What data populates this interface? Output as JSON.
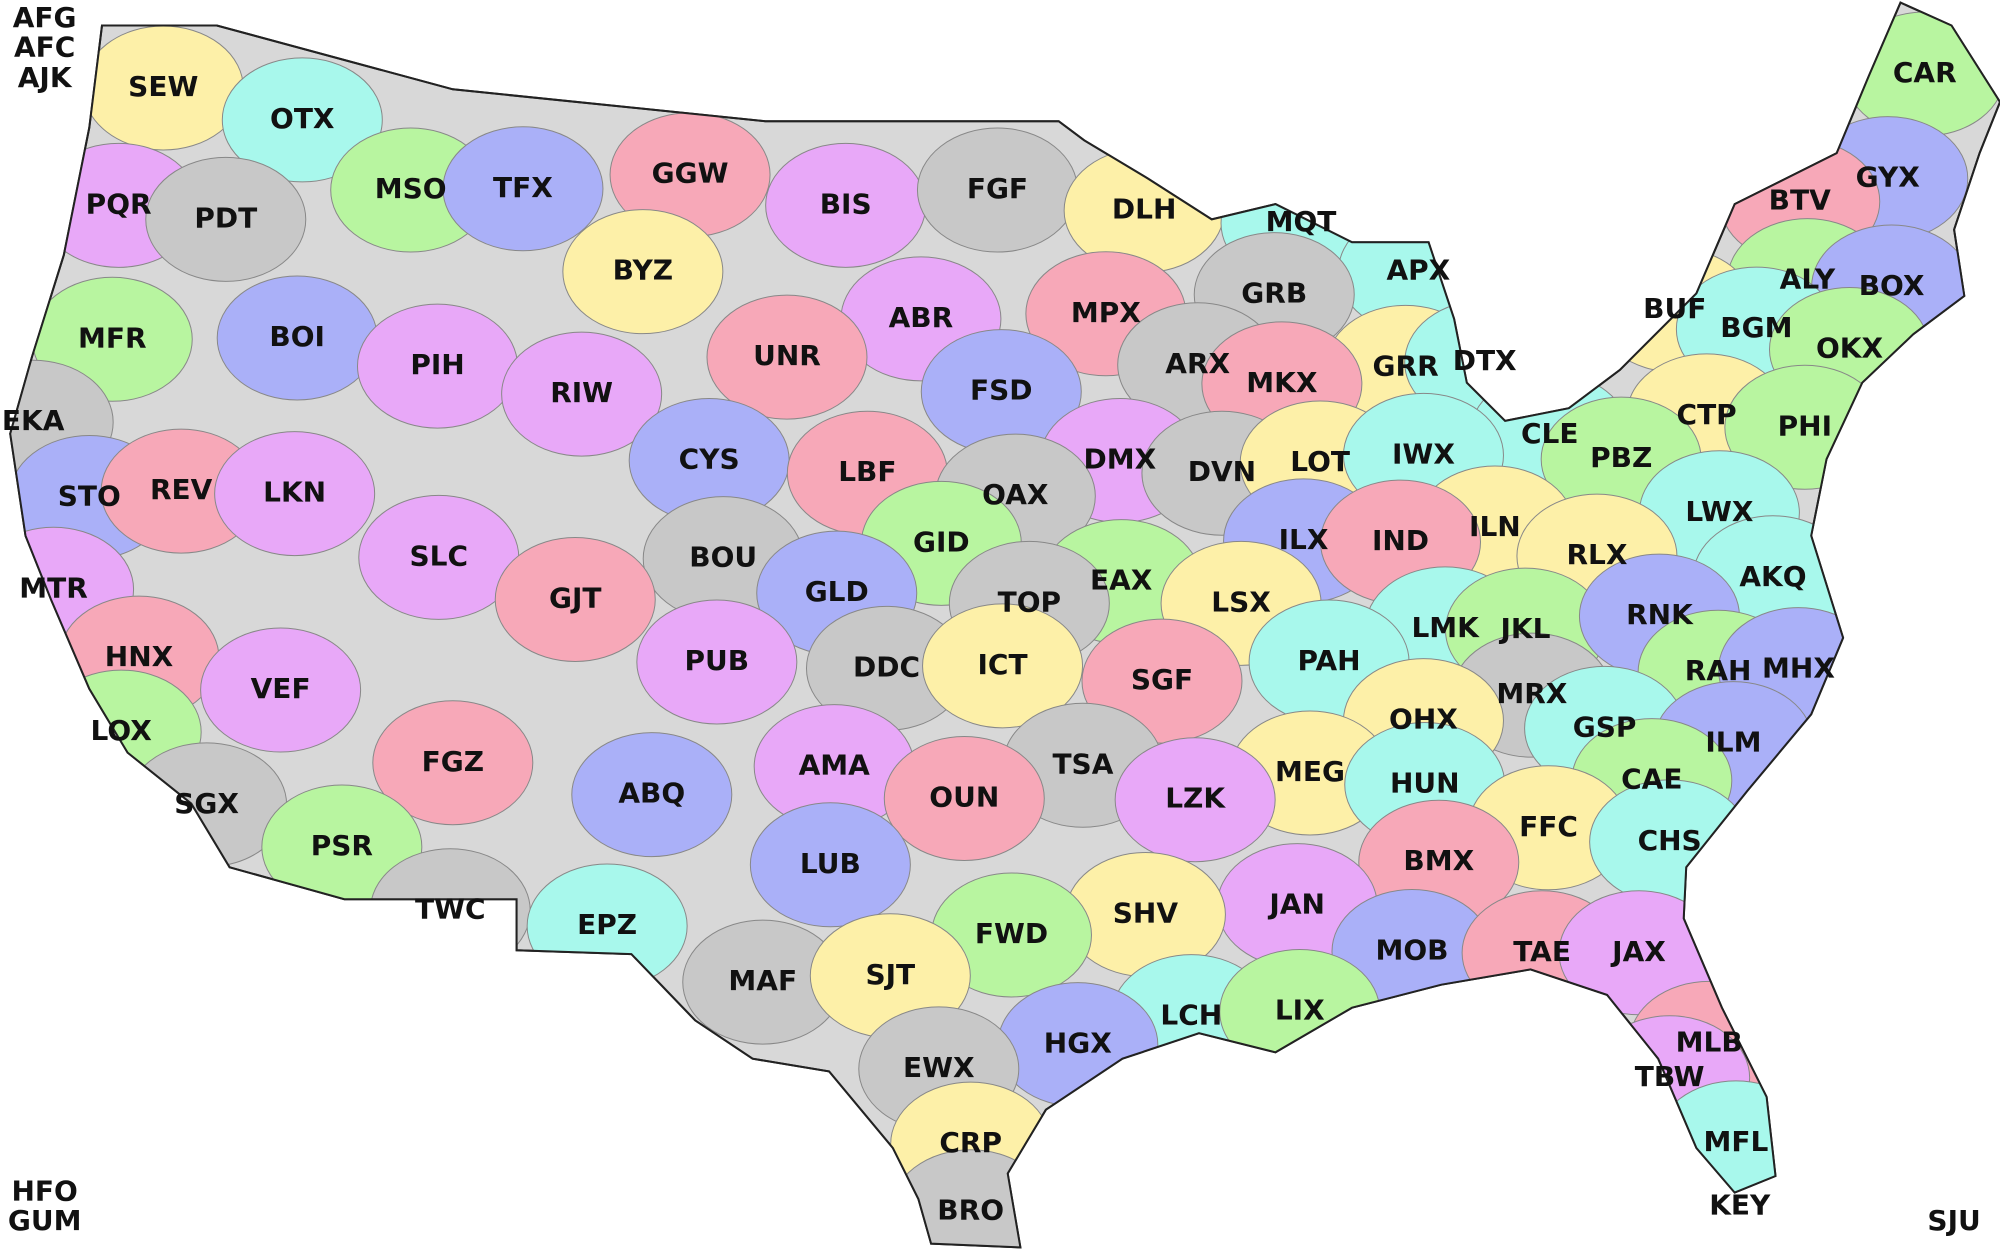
{
  "offices": [
    "AFG",
    "AFC",
    "AJK",
    "SEW",
    "OTX",
    "MSO",
    "TFX",
    "GGW",
    "BIS",
    "FGF",
    "DLH",
    "MQT",
    "CAR",
    "GYX",
    "BTV",
    "PQR",
    "PDT",
    "BYZ",
    "APX",
    "ALY",
    "BOX",
    "MPX",
    "ABR",
    "GRB",
    "BUF",
    "BGM",
    "MFR",
    "BOI",
    "UNR",
    "PIH",
    "ARX",
    "GRR",
    "DTX",
    "OKX",
    "FSD",
    "MKX",
    "RIW",
    "EKA",
    "CTP",
    "CLE",
    "PHI",
    "CYS",
    "LBF",
    "DMX",
    "DVN",
    "LOT",
    "IWX",
    "PBZ",
    "STO",
    "REV",
    "LKN",
    "OAX",
    "ILN",
    "LWX",
    "GID",
    "ILX",
    "IND",
    "SLC",
    "BOU",
    "RLX",
    "AKQ",
    "EAX",
    "GLD",
    "GJT",
    "MTR",
    "TOP",
    "LSX",
    "LMK",
    "JKL",
    "RNK",
    "HNX",
    "PUB",
    "DDC",
    "ICT",
    "PAH",
    "RAH",
    "MHX",
    "SGF",
    "VEF",
    "MRX",
    "OHX",
    "GSP",
    "LOX",
    "ILM",
    "FGZ",
    "AMA",
    "TSA",
    "MEG",
    "HUN",
    "CAE",
    "ABQ",
    "OUN",
    "LZK",
    "SGX",
    "FFC",
    "CHS",
    "PSR",
    "LUB",
    "BMX",
    "JAN",
    "TWC",
    "SHV",
    "EPZ",
    "FWD",
    "MOB",
    "TAE",
    "JAX",
    "MAF",
    "SJT",
    "LCH",
    "LIX",
    "HGX",
    "MLB",
    "TBW",
    "EWX",
    "CRP",
    "MFL",
    "HFO",
    "GUM",
    "KEY",
    "SJU",
    "BRO"
  ]
}
